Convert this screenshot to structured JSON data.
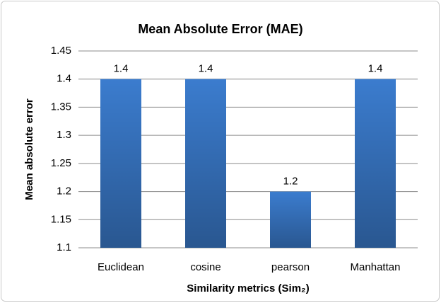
{
  "chart_data": {
    "type": "bar",
    "title": "Mean Absolute Error (MAE)",
    "x_label": "Similarity metrics (Sim₂)",
    "y_label": "Mean absolute error",
    "categories": [
      "Euclidean",
      "cosine",
      "pearson",
      "Manhattan"
    ],
    "values": [
      1.4,
      1.4,
      1.2,
      1.4
    ],
    "color": "#3b7cce",
    "ylim": [
      1.1,
      1.45
    ],
    "yticks": [
      1.1,
      1.15,
      1.2,
      1.25,
      1.3,
      1.35,
      1.4,
      1.45
    ],
    "grid": true
  }
}
